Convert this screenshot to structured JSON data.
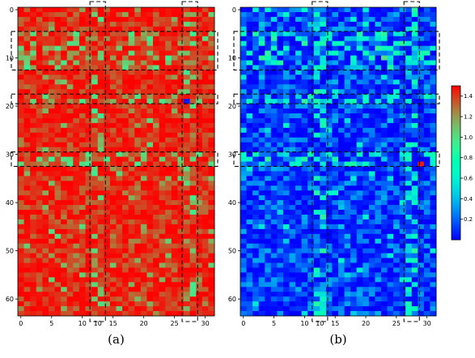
{
  "chart_data": [
    {
      "type": "heatmap",
      "panel_label": "(a)",
      "rows": 64,
      "cols": 32,
      "x_ticks": [
        0,
        5,
        10,
        15,
        20,
        25,
        30
      ],
      "y_ticks": [
        0,
        10,
        20,
        30,
        40,
        50,
        60
      ],
      "x_highlight_labels": [
        "10"
      ],
      "dominant_value_range": [
        1.25,
        1.5
      ],
      "highlighted_rows": [
        [
          5,
          12
        ],
        [
          18,
          19
        ],
        [
          30,
          32
        ]
      ],
      "highlighted_cols": [
        [
          12,
          13
        ],
        [
          27,
          28
        ]
      ],
      "notable_cells": [
        {
          "row": 19,
          "col": 27,
          "approx_value": 0.05
        }
      ]
    },
    {
      "type": "heatmap",
      "panel_label": "(b)",
      "rows": 64,
      "cols": 32,
      "x_ticks": [
        0,
        5,
        10,
        15,
        20,
        25,
        30
      ],
      "y_ticks": [
        0,
        10,
        20,
        30,
        40,
        50,
        60
      ],
      "x_highlight_labels": [
        "10"
      ],
      "dominant_value_range": [
        0.0,
        0.3
      ],
      "highlighted_rows": [
        [
          5,
          12
        ],
        [
          18,
          19
        ],
        [
          30,
          32
        ]
      ],
      "highlighted_cols": [
        [
          12,
          13
        ],
        [
          27,
          28
        ]
      ],
      "notable_cells": [
        {
          "row": 32,
          "col": 29,
          "approx_value": 1.45
        },
        {
          "row": 10,
          "col": 23,
          "approx_value": 1.0
        },
        {
          "row": 19,
          "col": 10,
          "approx_value": 0.9
        }
      ]
    }
  ],
  "colorbar": {
    "ticks": [
      0.2,
      0.4,
      0.6,
      0.8,
      1.0,
      1.2,
      1.4
    ],
    "min": 0.0,
    "max": 1.5,
    "colormap": "rainbow"
  }
}
